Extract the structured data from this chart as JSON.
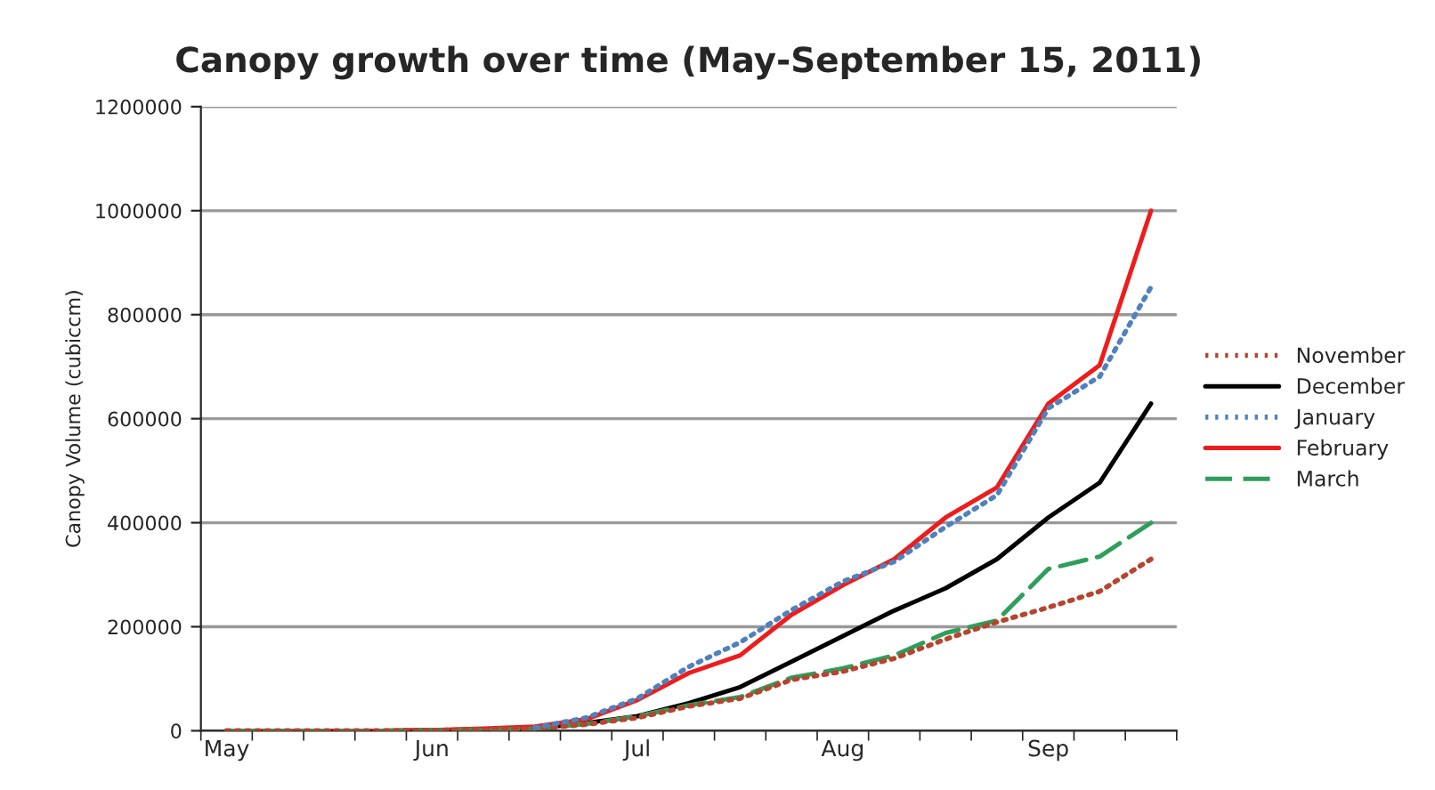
{
  "chart_data": {
    "type": "line",
    "title": "Canopy growth over time (May-September 15, 2011)",
    "ylabel": "Canopy Volume (cubiccm)",
    "categories": [
      "May",
      null,
      null,
      null,
      "Jun",
      null,
      null,
      null,
      "Jul",
      null,
      null,
      null,
      "Aug",
      null,
      null,
      null,
      "Sep",
      null,
      null
    ],
    "series": [
      {
        "name": "November",
        "color": "#b5452f",
        "line_style": "dotted",
        "values": [
          0,
          0,
          0,
          0,
          1000,
          2000,
          4000,
          12000,
          25000,
          47000,
          62000,
          98000,
          114000,
          139000,
          176000,
          209000,
          237000,
          268000,
          330000
        ]
      },
      {
        "name": "December",
        "color": "#000000",
        "line_style": "solid",
        "values": [
          0,
          0,
          0,
          0,
          1000,
          2000,
          4000,
          15000,
          28000,
          53000,
          84000,
          133000,
          182000,
          231000,
          274000,
          330000,
          410000,
          477000,
          629000
        ]
      },
      {
        "name": "January",
        "color": "#4f81bd",
        "line_style": "dotted",
        "values": [
          null,
          null,
          null,
          null,
          null,
          null,
          6000,
          25000,
          62000,
          123000,
          170000,
          232000,
          287000,
          325000,
          392000,
          453000,
          620000,
          681000,
          853000
        ]
      },
      {
        "name": "February",
        "color": "#ee1c1c",
        "line_style": "solid",
        "values": [
          0,
          0,
          0,
          0,
          1000,
          4000,
          8000,
          22000,
          59000,
          111000,
          145000,
          223000,
          280000,
          330000,
          410000,
          468000,
          629000,
          703000,
          1000000
        ]
      },
      {
        "name": "March",
        "color": "#2e9e5b",
        "line_style": "dashed",
        "values": [
          0,
          0,
          0,
          0,
          1000,
          2000,
          4000,
          13000,
          28000,
          49000,
          65000,
          102000,
          120000,
          145000,
          188000,
          212000,
          311000,
          335000,
          400000
        ]
      }
    ],
    "ylim": [
      0,
      1200000
    ],
    "yticks": [
      0,
      200000,
      400000,
      600000,
      800000,
      1000000,
      1200000
    ],
    "grid": "y",
    "legend": "right",
    "marker": "none"
  }
}
